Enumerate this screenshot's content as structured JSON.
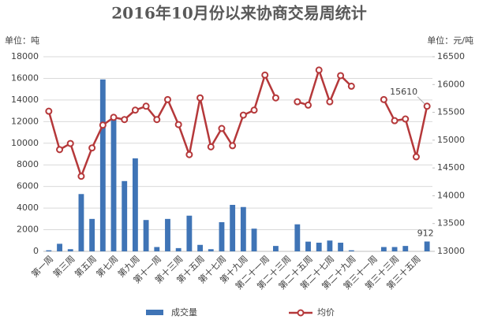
{
  "chart_data": {
    "type": "combo",
    "title": "2016年10月份以来协商交易周统计",
    "y_unit": "单位：吨",
    "y2_unit": "单位：元/吨",
    "categories": [
      "第一周",
      null,
      "第三周",
      null,
      "第五周",
      null,
      "第七周",
      null,
      "第九周",
      null,
      "第十一周",
      null,
      "第十三周",
      null,
      "第十五周",
      null,
      "第十七周",
      null,
      "第十九周",
      null,
      "第二十一周",
      null,
      "第二十三周",
      null,
      "第二十五周",
      null,
      "第二十七周",
      null,
      "第二十九周",
      null,
      "第三十一周",
      null,
      "第三十三周",
      null,
      "第三十五周",
      null
    ],
    "series": [
      {
        "name": "成交量",
        "type": "bar",
        "axis": "y",
        "color": "#3f74b6",
        "label_last": true,
        "values": [
          100,
          700,
          200,
          5300,
          3000,
          15900,
          12500,
          6500,
          8600,
          2900,
          400,
          3000,
          300,
          3300,
          600,
          200,
          2700,
          4300,
          4100,
          2100,
          0,
          500,
          0,
          2500,
          900,
          800,
          1000,
          800,
          100,
          0,
          0,
          400,
          400,
          500,
          0,
          912
        ]
      },
      {
        "name": "均价",
        "type": "line",
        "axis": "y2",
        "color": "#b5383a",
        "label_last": true,
        "values": [
          15520,
          14830,
          14940,
          14350,
          14860,
          15270,
          15410,
          15370,
          15540,
          15610,
          15370,
          15730,
          15280,
          14740,
          15760,
          14880,
          15210,
          14900,
          15450,
          15540,
          16170,
          15760,
          null,
          15690,
          15630,
          16260,
          15690,
          16160,
          15970,
          null,
          null,
          15730,
          15350,
          15380,
          14700,
          15610
        ]
      }
    ],
    "ylim": [
      0,
      18000
    ],
    "yticks": [
      0,
      2000,
      4000,
      6000,
      8000,
      10000,
      12000,
      14000,
      16000,
      18000
    ],
    "y2lim": [
      13000,
      16500
    ],
    "y2ticks": [
      13000,
      13500,
      14000,
      14500,
      15000,
      15500,
      16000,
      16500
    ],
    "grid": true,
    "legend": "bottom"
  }
}
